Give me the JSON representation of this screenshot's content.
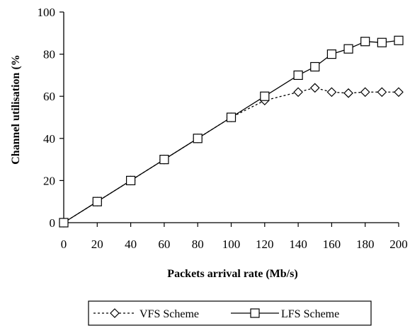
{
  "chart_data": {
    "type": "line",
    "xlabel": "Packets arrival rate (Mb/s)",
    "ylabel": "Channel utilisation (%",
    "xlim": [
      0,
      200
    ],
    "ylim": [
      0,
      100
    ],
    "x_ticks": [
      "0",
      "20",
      "40",
      "60",
      "80",
      "100",
      "120",
      "140",
      "160",
      "180",
      "200"
    ],
    "y_ticks": [
      "0",
      "20",
      "40",
      "60",
      "80",
      "100"
    ],
    "grid": false,
    "legend_position": "bottom",
    "series": [
      {
        "name": "VFS Scheme",
        "line": "dotted",
        "marker": "diamond",
        "x": [
          0,
          20,
          40,
          60,
          80,
          100,
          120,
          140,
          150,
          160,
          170,
          180,
          190,
          200
        ],
        "y": [
          0,
          10,
          20,
          30,
          40,
          50,
          58,
          62,
          64,
          62,
          61.5,
          62,
          62,
          62
        ]
      },
      {
        "name": "LFS Scheme",
        "line": "solid",
        "marker": "square",
        "x": [
          0,
          20,
          40,
          60,
          80,
          100,
          120,
          140,
          150,
          160,
          170,
          180,
          190,
          200
        ],
        "y": [
          0,
          10,
          20,
          30,
          40,
          50,
          60,
          70,
          74,
          80,
          82.5,
          86,
          85.5,
          86.5
        ]
      }
    ]
  }
}
